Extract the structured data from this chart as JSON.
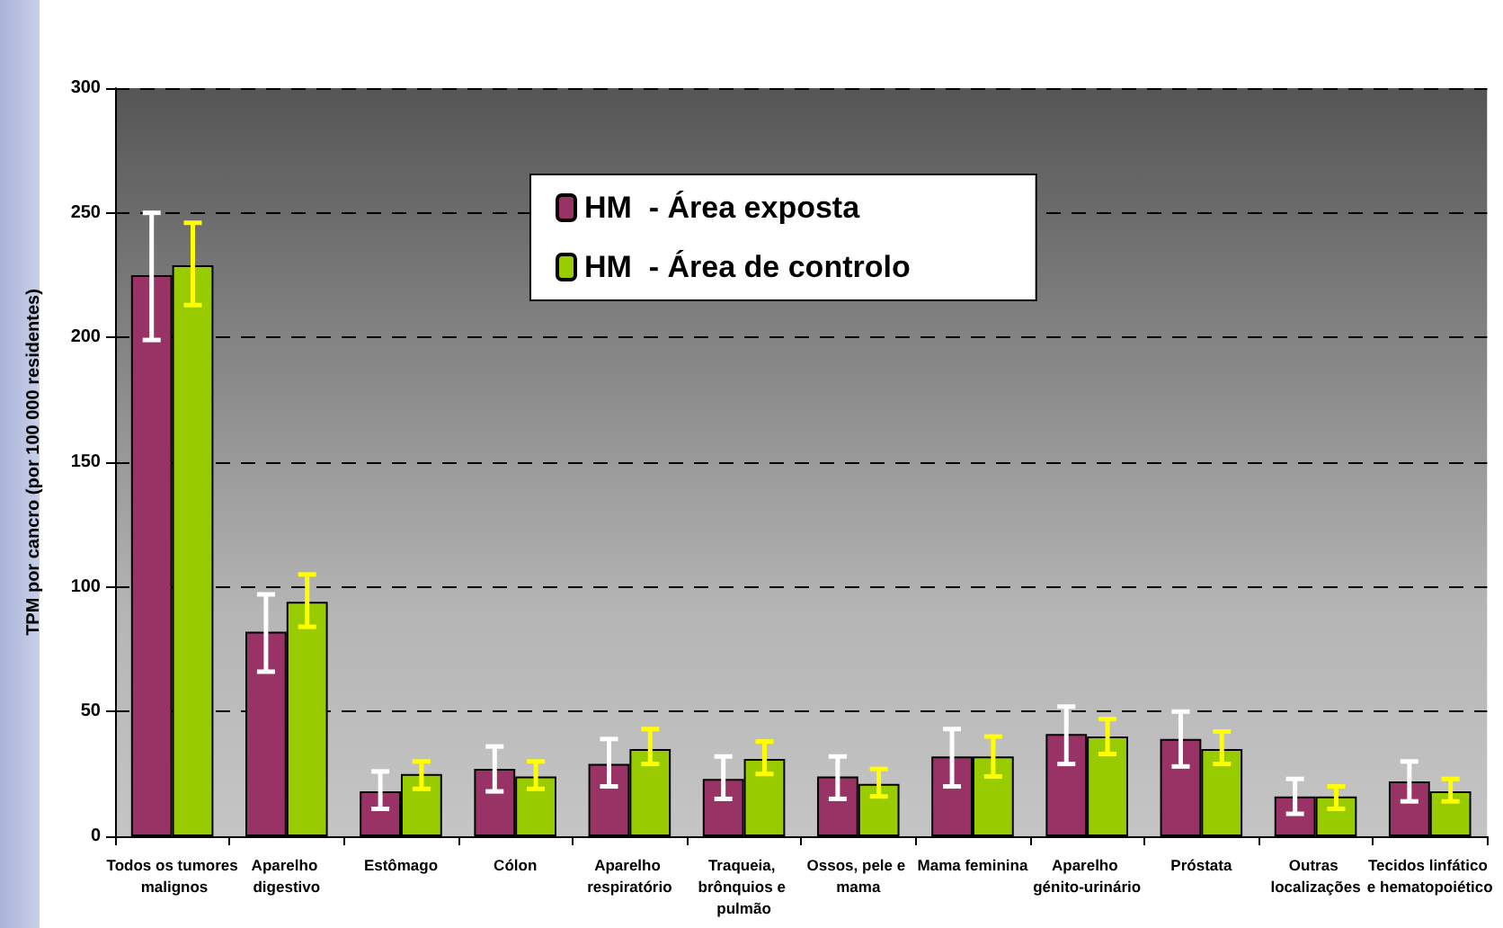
{
  "chart_data": {
    "type": "bar",
    "ylabel": "TPM por cancro (por 100 000 residentes)",
    "categories": [
      "Todos os tumores malignos",
      "Aparelho digestivo",
      "Estômago",
      "Cólon",
      "Aparelho respiratório",
      "Traqueia, brônquios e pulmão",
      "Ossos, pele e mama",
      "Mama feminina",
      "Aparelho génito-urinário",
      "Próstata",
      "Outras localizações",
      "Tecidos linfático e hematopoiético"
    ],
    "series": [
      {
        "name": "HM  - Área exposta",
        "color": "#993366",
        "values": [
          225,
          82,
          18,
          27,
          29,
          23,
          24,
          32,
          41,
          39,
          16,
          22
        ],
        "errors": [
          [
            199,
            250
          ],
          [
            66,
            97
          ],
          [
            11,
            26
          ],
          [
            18,
            36
          ],
          [
            20,
            39
          ],
          [
            15,
            32
          ],
          [
            15,
            32
          ],
          [
            20,
            43
          ],
          [
            29,
            52
          ],
          [
            28,
            50
          ],
          [
            9,
            23
          ],
          [
            14,
            30
          ]
        ]
      },
      {
        "name": "HM  - Área de controlo",
        "color": "#99cc00",
        "values": [
          229,
          94,
          25,
          24,
          35,
          31,
          21,
          32,
          40,
          35,
          16,
          18
        ],
        "errors": [
          [
            213,
            246
          ],
          [
            84,
            105
          ],
          [
            19,
            30
          ],
          [
            19,
            30
          ],
          [
            29,
            43
          ],
          [
            25,
            38
          ],
          [
            16,
            27
          ],
          [
            24,
            40
          ],
          [
            33,
            47
          ],
          [
            29,
            42
          ],
          [
            11,
            20
          ],
          [
            14,
            23
          ]
        ]
      }
    ],
    "ylim": [
      0,
      300
    ],
    "yticks": [
      0,
      50,
      100,
      150,
      200,
      250,
      300
    ],
    "grid": "y",
    "legend": "top"
  }
}
